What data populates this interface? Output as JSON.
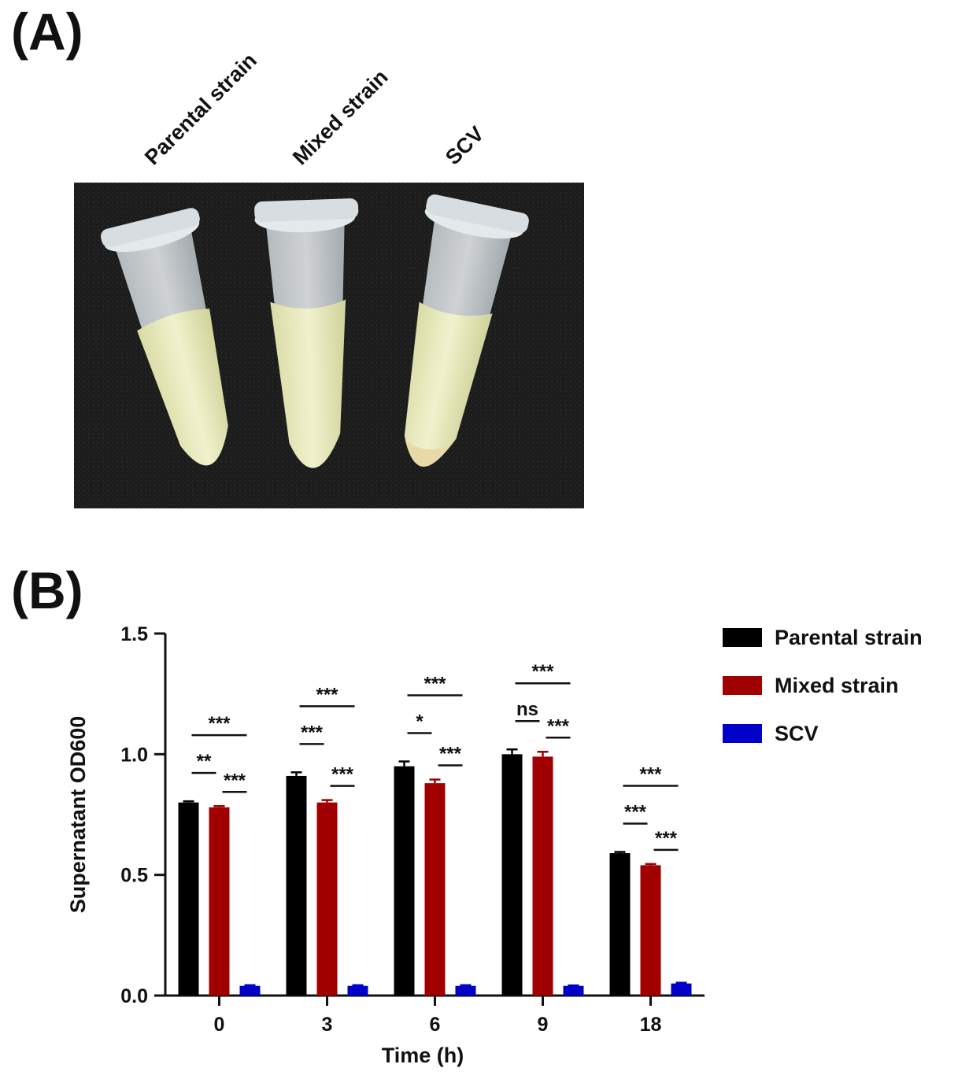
{
  "panel_a": {
    "label": "(A)",
    "tube_labels": [
      "Parental strain",
      "Mixed strain",
      "SCV"
    ]
  },
  "panel_b": {
    "label": "(B)"
  },
  "colors": {
    "parental": "#000000",
    "mixed": "#a00000",
    "scv": "#0000c8",
    "photo_background": "#1b1b1b",
    "liquid": "#eeefc4"
  },
  "chart_data": {
    "type": "bar",
    "xlabel": "Time (h)",
    "ylabel": "Supernatant OD600",
    "ylim": [
      0,
      1.5
    ],
    "yticks": [
      "0.0",
      "0.5",
      "1.0",
      "1.5"
    ],
    "categories": [
      "0",
      "3",
      "6",
      "9",
      "18"
    ],
    "legend_position": "right",
    "series": [
      {
        "name": "Parental strain",
        "values": [
          0.8,
          0.91,
          0.95,
          1.0,
          0.59
        ],
        "errors": [
          0.005,
          0.015,
          0.02,
          0.02,
          0.005
        ]
      },
      {
        "name": "Mixed strain",
        "values": [
          0.78,
          0.8,
          0.88,
          0.99,
          0.54
        ],
        "errors": [
          0.005,
          0.01,
          0.015,
          0.02,
          0.005
        ]
      },
      {
        "name": "SCV",
        "values": [
          0.04,
          0.04,
          0.04,
          0.04,
          0.05
        ],
        "errors": [
          0.003,
          0.003,
          0.003,
          0.002,
          0.003
        ]
      }
    ],
    "annotations": [
      {
        "group": 0,
        "from": 0,
        "to": 1,
        "text": "**"
      },
      {
        "group": 0,
        "from": 0,
        "to": 2,
        "text": "***"
      },
      {
        "group": 0,
        "from": 1,
        "to": 2,
        "text": "***"
      },
      {
        "group": 1,
        "from": 0,
        "to": 1,
        "text": "***"
      },
      {
        "group": 1,
        "from": 0,
        "to": 2,
        "text": "***"
      },
      {
        "group": 1,
        "from": 1,
        "to": 2,
        "text": "***"
      },
      {
        "group": 2,
        "from": 0,
        "to": 1,
        "text": "*"
      },
      {
        "group": 2,
        "from": 0,
        "to": 2,
        "text": "***"
      },
      {
        "group": 2,
        "from": 1,
        "to": 2,
        "text": "***"
      },
      {
        "group": 3,
        "from": 0,
        "to": 1,
        "text": "ns"
      },
      {
        "group": 3,
        "from": 0,
        "to": 2,
        "text": "***"
      },
      {
        "group": 3,
        "from": 1,
        "to": 2,
        "text": "***"
      },
      {
        "group": 4,
        "from": 0,
        "to": 1,
        "text": "***"
      },
      {
        "group": 4,
        "from": 0,
        "to": 2,
        "text": "***"
      },
      {
        "group": 4,
        "from": 1,
        "to": 2,
        "text": "***"
      }
    ]
  }
}
